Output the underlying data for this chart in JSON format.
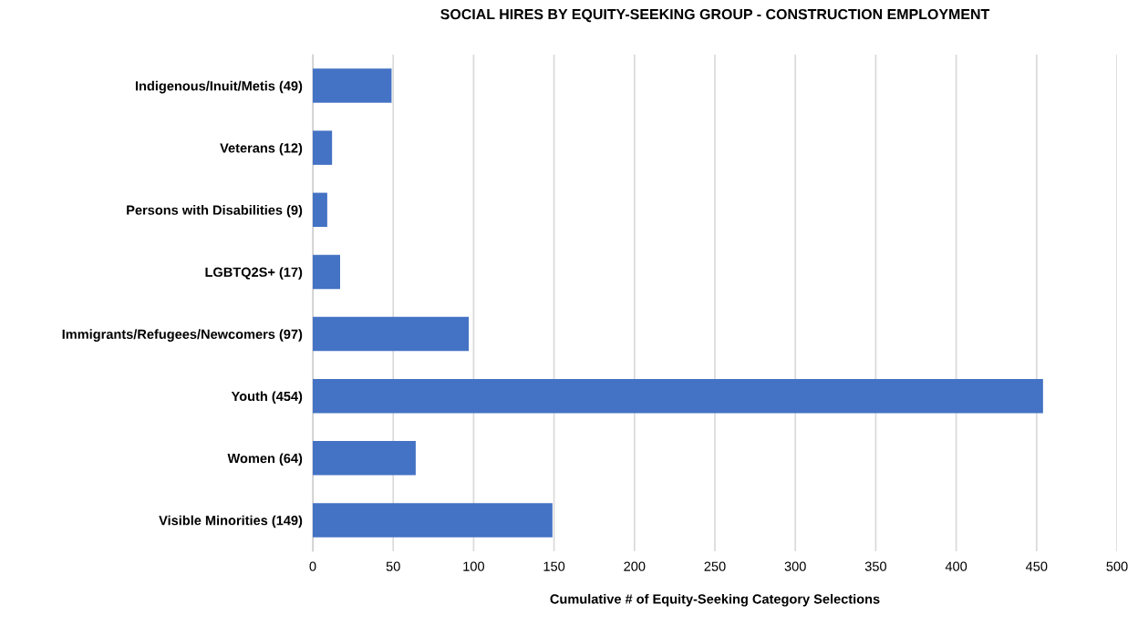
{
  "chart_data": {
    "type": "bar",
    "orientation": "horizontal",
    "title": "SOCIAL HIRES BY EQUITY-SEEKING GROUP - CONSTRUCTION EMPLOYMENT",
    "xlabel": "Cumulative # of Equity-Seeking Category Selections",
    "categories": [
      "Indigenous/Inuit/Metis (49)",
      "Veterans (12)",
      "Persons with Disabilities (9)",
      "LGBTQ2S+ (17)",
      "Immigrants/Refugees/Newcomers (97)",
      "Youth (454)",
      "Women (64)",
      "Visible Minorities (149)"
    ],
    "values": [
      49,
      12,
      9,
      17,
      97,
      454,
      64,
      149
    ],
    "color": "#4472c4",
    "xlim": [
      0,
      500
    ],
    "xticks": [
      0,
      50,
      100,
      150,
      200,
      250,
      300,
      350,
      400,
      450,
      500
    ],
    "grid": "x",
    "legend": false
  }
}
